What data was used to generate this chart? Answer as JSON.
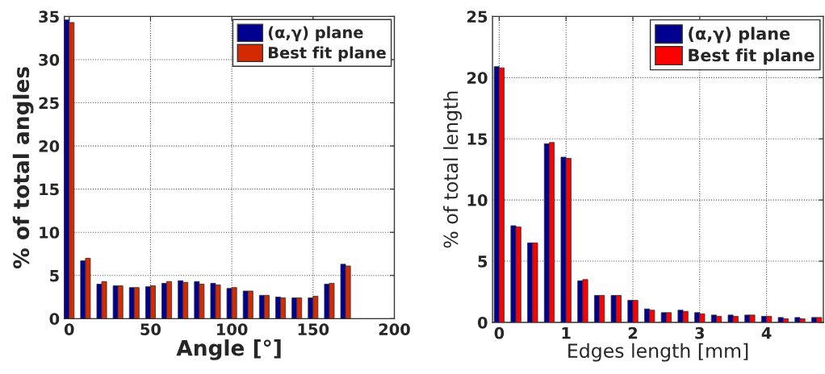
{
  "chart_data": [
    {
      "type": "bar",
      "xlabel": "Angle [°]",
      "ylabel": "% of total angles",
      "x": [
        0,
        10,
        20,
        30,
        40,
        50,
        60,
        70,
        80,
        90,
        100,
        110,
        120,
        130,
        140,
        150,
        160,
        170
      ],
      "series": [
        {
          "name": "(α,γ) plane",
          "color": "#000090",
          "values": [
            34.6,
            6.7,
            4.0,
            3.8,
            3.6,
            3.7,
            4.1,
            4.4,
            4.3,
            4.1,
            3.5,
            3.2,
            2.7,
            2.5,
            2.4,
            2.4,
            4.0,
            6.3
          ]
        },
        {
          "name": "Best fit plane",
          "color": "#d42a00",
          "values": [
            34.3,
            7.0,
            4.3,
            3.8,
            3.6,
            3.8,
            4.3,
            4.2,
            4.0,
            3.9,
            3.6,
            3.2,
            2.7,
            2.4,
            2.4,
            2.6,
            4.1,
            6.1
          ]
        }
      ],
      "xlim": [
        -3,
        200
      ],
      "xticks": [
        0,
        50,
        100,
        150,
        200
      ],
      "ylim": [
        0,
        35
      ],
      "yticks": [
        0,
        5,
        10,
        15,
        20,
        25,
        30,
        35
      ],
      "grid": true,
      "legend": "top right"
    },
    {
      "type": "bar",
      "xlabel": "Edges length [mm]",
      "ylabel": "% of total length",
      "x": [
        0,
        0.25,
        0.5,
        0.75,
        1,
        1.25,
        1.5,
        1.75,
        2,
        2.25,
        2.5,
        2.75,
        3,
        3.25,
        3.5,
        3.75,
        4,
        4.25,
        4.5,
        4.75
      ],
      "series": [
        {
          "name": "(α,γ) plane",
          "color": "#000090",
          "values": [
            20.9,
            7.9,
            6.5,
            14.6,
            13.5,
            3.4,
            2.2,
            2.2,
            1.8,
            1.1,
            0.8,
            1.0,
            0.8,
            0.6,
            0.6,
            0.6,
            0.5,
            0.4,
            0.4,
            0.4
          ]
        },
        {
          "name": "Best fit plane",
          "color": "#ff0000",
          "values": [
            20.8,
            7.8,
            6.5,
            14.7,
            13.4,
            3.5,
            2.2,
            2.2,
            1.8,
            1.0,
            0.8,
            0.9,
            0.7,
            0.5,
            0.5,
            0.6,
            0.5,
            0.3,
            0.3,
            0.4
          ]
        }
      ],
      "xlim": [
        -0.1,
        4.85
      ],
      "xticks": [
        0,
        1,
        2,
        3,
        4
      ],
      "ylim": [
        0,
        25
      ],
      "yticks": [
        0,
        5,
        10,
        15,
        20,
        25
      ],
      "grid": true,
      "legend": "top right"
    }
  ]
}
